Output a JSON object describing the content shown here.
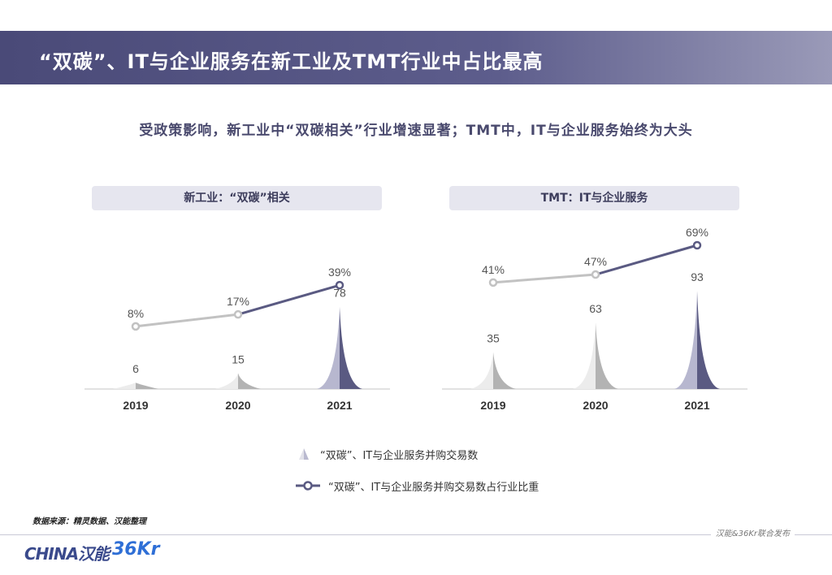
{
  "page": {
    "title": "“双碳”、IT与企业服务在新工业及TMT行业中占比最高",
    "subtitle": "受政策影响，新工业中“双碳相关”行业增速显著；TMT中，IT与企业服务始终为大头",
    "source": "数据来源：精灵数据、汉能整理",
    "footer_right": "汉能&36Kr联合发布",
    "logo_left": "CHINA汉能",
    "logo_right": "36Kr"
  },
  "legend": {
    "series_a": "“双碳”、IT与企业服务并购交易数",
    "series_b": "“双碳”、IT与企业服务并购交易数占行业比重"
  },
  "colors": {
    "title_bar": "#4f4f7f",
    "line_past": "#c2c2c2",
    "line_latest": "#5a5a82",
    "peak_past": "#d6d6d6",
    "peak_latest": "#5a5a82"
  },
  "chart_data": [
    {
      "type": "area",
      "title": "新工业：“双碳”相关",
      "categories": [
        "2019",
        "2020",
        "2021"
      ],
      "series": [
        {
          "name": "“双碳”、IT与企业服务并购交易数",
          "values": [
            6,
            15,
            78
          ],
          "labels": [
            "6",
            "15",
            "78"
          ]
        },
        {
          "name": "“双碳”、IT与企业服务并购交易数占行业比重",
          "values": [
            8,
            17,
            39
          ],
          "labels": [
            "8%",
            "17%",
            "39%"
          ]
        }
      ]
    },
    {
      "type": "area",
      "title": "TMT：IT与企业服务",
      "categories": [
        "2019",
        "2020",
        "2021"
      ],
      "series": [
        {
          "name": "“双碳”、IT与企业服务并购交易数",
          "values": [
            35,
            63,
            93
          ],
          "labels": [
            "35",
            "63",
            "93"
          ]
        },
        {
          "name": "“双碳”、IT与企业服务并购交易数占行业比重",
          "values": [
            41,
            47,
            69
          ],
          "labels": [
            "41%",
            "47%",
            "69%"
          ]
        }
      ]
    }
  ]
}
